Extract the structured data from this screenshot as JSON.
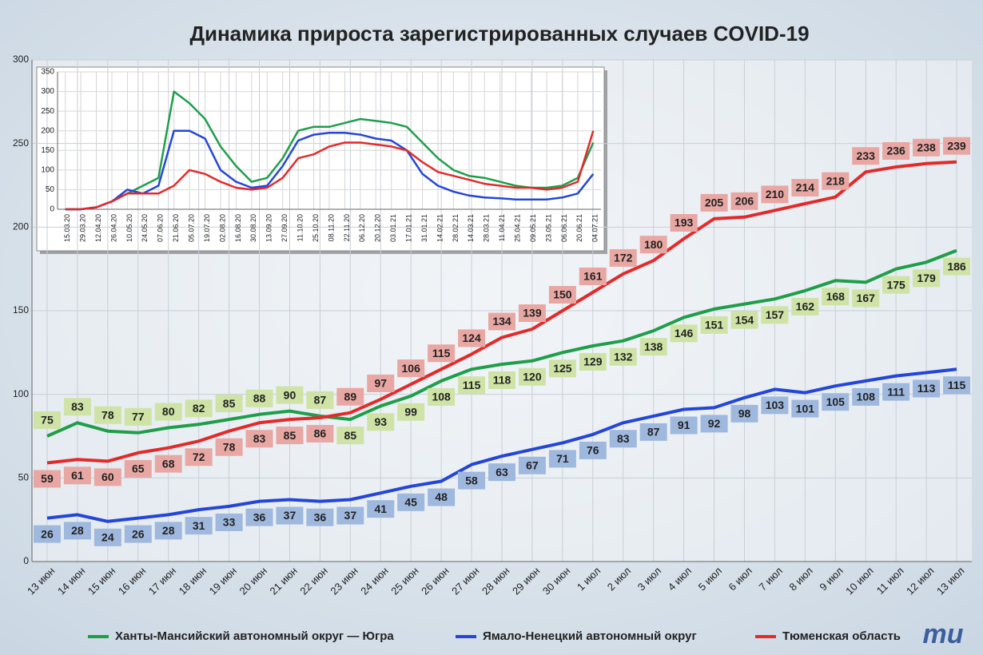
{
  "chart_data": [
    {
      "type": "line",
      "title": "Динамика прироста зарегистрированных случаев COVID-19",
      "categories": [
        "13 июн",
        "14 июн",
        "15 июн",
        "16 июн",
        "17 июн",
        "18 июн",
        "19 июн",
        "20 июн",
        "21 июн",
        "22 июн",
        "23 июн",
        "24 июн",
        "25 июн",
        "26 июн",
        "27 июн",
        "28 июн",
        "29 июн",
        "30 июн",
        "1 июл",
        "2 июл",
        "3 июл",
        "4 июл",
        "5 июл",
        "6 июл",
        "7 июл",
        "8 июл",
        "9 июл",
        "10 июл",
        "11 июл",
        "12 июл",
        "13 июл"
      ],
      "series": [
        {
          "name": "Ханты-Мансийский автономный округ — Югра",
          "color": "#1f9e4a",
          "label_color": "#cfe3a6",
          "values": [
            75,
            83,
            78,
            77,
            80,
            82,
            85,
            88,
            90,
            87,
            85,
            93,
            99,
            108,
            115,
            118,
            120,
            125,
            129,
            132,
            138,
            146,
            151,
            154,
            157,
            162,
            168,
            167,
            175,
            179,
            186
          ]
        },
        {
          "name": "Ямало-Ненецкий автономный округ",
          "color": "#2446d8",
          "label_color": "#9fb8de",
          "values": [
            26,
            28,
            24,
            26,
            28,
            31,
            33,
            36,
            37,
            36,
            37,
            41,
            45,
            48,
            58,
            63,
            67,
            71,
            76,
            83,
            87,
            91,
            92,
            98,
            103,
            101,
            105,
            108,
            111,
            113,
            115
          ]
        },
        {
          "name": "Тюменская область",
          "color": "#e32a2a",
          "label_color": "#e8a7a3",
          "values": [
            59,
            61,
            60,
            65,
            68,
            72,
            78,
            83,
            85,
            86,
            89,
            97,
            106,
            115,
            124,
            134,
            139,
            150,
            161,
            172,
            180,
            193,
            205,
            206,
            210,
            214,
            218,
            233,
            236,
            238,
            239
          ]
        }
      ],
      "ylim": [
        0,
        300
      ],
      "yticks": [
        0,
        50,
        100,
        150,
        200,
        250,
        300
      ],
      "grid": true,
      "legend": "bottom",
      "logo": "mu"
    },
    {
      "type": "line",
      "categories": [
        "15.03.20",
        "29.03.20",
        "12.04.20",
        "26.04.20",
        "10.05.20",
        "24.05.20",
        "07.06.20",
        "21.06.20",
        "05.07.20",
        "19.07.20",
        "02.08.20",
        "16.08.20",
        "30.08.20",
        "13.09.20",
        "27.09.20",
        "11.10.20",
        "25.10.20",
        "08.11.20",
        "22.11.20",
        "06.12.20",
        "20.12.20",
        "03.01.21",
        "17.01.21",
        "31.01.21",
        "14.02.21",
        "28.02.21",
        "14.03.21",
        "28.03.21",
        "11.04.21",
        "25.04.21",
        "09.05.21",
        "23.05.21",
        "06.06.21",
        "20.06.21",
        "04.07.21"
      ],
      "series": [
        {
          "color": "#1f9e4a",
          "values": [
            0,
            0,
            5,
            20,
            40,
            60,
            80,
            300,
            270,
            230,
            160,
            110,
            70,
            80,
            130,
            200,
            210,
            210,
            220,
            230,
            225,
            220,
            210,
            170,
            130,
            100,
            85,
            80,
            70,
            60,
            55,
            55,
            60,
            80,
            170
          ]
        },
        {
          "color": "#2446d8",
          "values": [
            0,
            0,
            5,
            20,
            50,
            40,
            60,
            200,
            200,
            180,
            100,
            70,
            55,
            60,
            110,
            175,
            190,
            195,
            195,
            190,
            180,
            175,
            150,
            90,
            60,
            45,
            35,
            30,
            28,
            25,
            25,
            25,
            30,
            40,
            90
          ]
        },
        {
          "color": "#e32a2a",
          "values": [
            0,
            0,
            5,
            20,
            40,
            40,
            40,
            60,
            100,
            90,
            70,
            55,
            50,
            55,
            80,
            130,
            140,
            160,
            170,
            170,
            165,
            160,
            150,
            120,
            95,
            85,
            75,
            65,
            60,
            55,
            55,
            50,
            55,
            70,
            200
          ]
        }
      ],
      "ylim": [
        0,
        350
      ],
      "yticks": [
        0,
        50,
        100,
        150,
        200,
        250,
        300,
        350
      ],
      "grid": true
    }
  ]
}
